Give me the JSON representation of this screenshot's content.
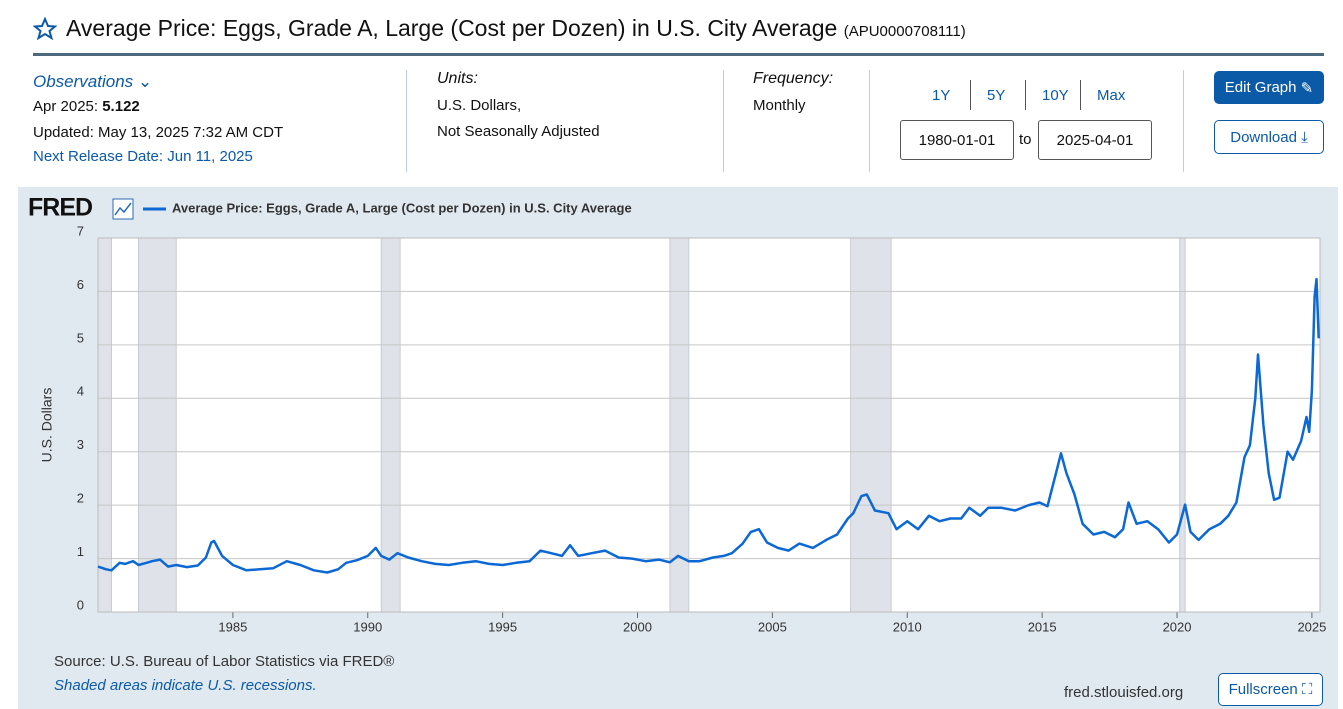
{
  "header": {
    "title": "Average Price: Eggs, Grade A, Large (Cost per Dozen) in U.S. City Average",
    "series_id": "(APU0000708111)"
  },
  "info": {
    "observations": "Observations",
    "latest_label": "Apr 2025: ",
    "latest_value": "5.122",
    "updated": "Updated: May 13, 2025 7:32 AM CDT",
    "next_release": "Next Release Date: Jun 11, 2025",
    "units_label": "Units:",
    "units_1": "U.S. Dollars,",
    "units_2": "Not Seasonally Adjusted",
    "frequency_label": "Frequency:",
    "frequency": "Monthly",
    "ranges": [
      "1Y",
      "5Y",
      "10Y",
      "Max"
    ],
    "start_date": "1980-01-01",
    "to": "to",
    "end_date": "2025-04-01",
    "edit_graph": "Edit Graph",
    "download": "Download"
  },
  "chart_data": {
    "type": "line",
    "brand": "FRED",
    "y_label": "U.S. Dollars",
    "grid": true,
    "xlim": [
      1980,
      2025.3
    ],
    "xticks": [
      1985,
      1990,
      1995,
      2000,
      2005,
      2010,
      2015,
      2020,
      2025
    ],
    "ylim": [
      0,
      7
    ],
    "yticks": [
      0,
      1,
      2,
      3,
      4,
      5,
      6,
      7
    ],
    "recessions": [
      [
        1980.0,
        1980.5
      ],
      [
        1981.5,
        1982.9
      ],
      [
        1990.5,
        1991.2
      ],
      [
        2001.2,
        2001.9
      ],
      [
        2007.9,
        2009.4
      ],
      [
        2020.1,
        2020.3
      ]
    ],
    "x": [
      1980.0,
      1980.3,
      1980.5,
      1980.8,
      1981.0,
      1981.3,
      1981.5,
      1981.8,
      1982.0,
      1982.3,
      1982.6,
      1982.9,
      1983.3,
      1983.7,
      1984.0,
      1984.2,
      1984.3,
      1984.6,
      1985.0,
      1985.5,
      1986.0,
      1986.5,
      1987.0,
      1987.5,
      1988.0,
      1988.5,
      1988.9,
      1989.2,
      1989.6,
      1990.0,
      1990.3,
      1990.5,
      1990.8,
      1991.1,
      1991.5,
      1992.0,
      1992.5,
      1993.0,
      1993.5,
      1994.0,
      1994.5,
      1995.0,
      1995.5,
      1996.0,
      1996.4,
      1996.8,
      1997.2,
      1997.5,
      1997.8,
      1998.3,
      1998.8,
      1999.3,
      1999.8,
      2000.3,
      2000.8,
      2001.2,
      2001.5,
      2001.9,
      2002.3,
      2002.8,
      2003.2,
      2003.5,
      2003.9,
      2004.2,
      2004.5,
      2004.8,
      2005.2,
      2005.6,
      2006.0,
      2006.5,
      2007.0,
      2007.4,
      2007.8,
      2008.0,
      2008.3,
      2008.5,
      2008.8,
      2009.3,
      2009.6,
      2010.0,
      2010.4,
      2010.8,
      2011.2,
      2011.6,
      2012.0,
      2012.3,
      2012.7,
      2013.0,
      2013.5,
      2014.0,
      2014.5,
      2014.9,
      2015.2,
      2015.5,
      2015.7,
      2015.9,
      2016.2,
      2016.5,
      2016.9,
      2017.3,
      2017.7,
      2018.0,
      2018.2,
      2018.5,
      2018.9,
      2019.3,
      2019.7,
      2020.0,
      2020.3,
      2020.5,
      2020.8,
      2021.2,
      2021.6,
      2021.9,
      2022.2,
      2022.5,
      2022.7,
      2022.9,
      2023.0,
      2023.2,
      2023.4,
      2023.6,
      2023.8,
      2024.1,
      2024.3,
      2024.6,
      2024.8,
      2024.9,
      2025.0,
      2025.1,
      2025.17,
      2025.25
    ],
    "series": [
      {
        "name": "Average Price: Eggs, Grade A, Large (Cost per Dozen) in U.S. City Average",
        "color": "#0b68d4",
        "values": [
          0.85,
          0.8,
          0.78,
          0.92,
          0.9,
          0.95,
          0.88,
          0.92,
          0.95,
          0.98,
          0.85,
          0.88,
          0.84,
          0.87,
          1.02,
          1.3,
          1.33,
          1.05,
          0.88,
          0.78,
          0.8,
          0.82,
          0.95,
          0.88,
          0.78,
          0.74,
          0.8,
          0.92,
          0.97,
          1.05,
          1.2,
          1.05,
          0.98,
          1.1,
          1.02,
          0.95,
          0.9,
          0.88,
          0.92,
          0.95,
          0.9,
          0.88,
          0.92,
          0.95,
          1.15,
          1.1,
          1.05,
          1.25,
          1.05,
          1.1,
          1.15,
          1.02,
          1.0,
          0.95,
          0.98,
          0.93,
          1.05,
          0.95,
          0.95,
          1.02,
          1.05,
          1.1,
          1.28,
          1.5,
          1.55,
          1.3,
          1.2,
          1.15,
          1.28,
          1.2,
          1.35,
          1.45,
          1.75,
          1.85,
          2.17,
          2.2,
          1.9,
          1.85,
          1.55,
          1.7,
          1.55,
          1.8,
          1.7,
          1.75,
          1.75,
          1.95,
          1.8,
          1.95,
          1.95,
          1.9,
          2.0,
          2.05,
          1.98,
          2.57,
          2.97,
          2.6,
          2.2,
          1.65,
          1.45,
          1.5,
          1.4,
          1.55,
          2.05,
          1.65,
          1.7,
          1.55,
          1.3,
          1.45,
          2.01,
          1.5,
          1.35,
          1.55,
          1.65,
          1.8,
          2.05,
          2.9,
          3.12,
          4.0,
          4.82,
          3.5,
          2.6,
          2.1,
          2.14,
          3.0,
          2.85,
          3.2,
          3.65,
          3.37,
          4.15,
          5.9,
          6.23,
          5.122
        ]
      }
    ]
  },
  "footer": {
    "source": "Source: U.S. Bureau of Labor Statistics via FRED®",
    "shaded": "Shaded areas indicate U.S. recessions.",
    "site": "fred.stlouisfed.org",
    "fullscreen": "Fullscreen"
  }
}
